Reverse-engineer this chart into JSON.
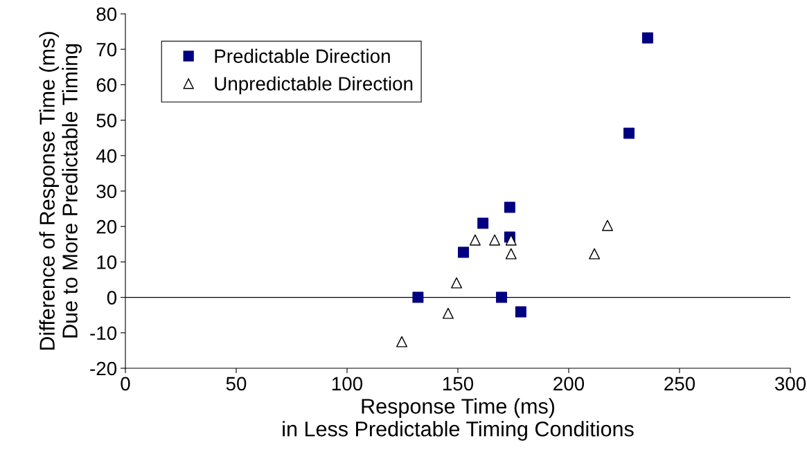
{
  "chart_data": {
    "type": "scatter",
    "xlabel": "Response Time (ms)\nin Less Predictable Timing Conditions",
    "ylabel": "Difference of Response Time (ms)\nDue to More Predictable Timing",
    "xlim": [
      0,
      300
    ],
    "xticks": [
      0,
      50,
      100,
      150,
      200,
      250,
      300
    ],
    "ylim": [
      -20,
      80
    ],
    "yticks": [
      -20,
      -10,
      0,
      10,
      20,
      30,
      40,
      50,
      60,
      70,
      80
    ],
    "grid": false,
    "legend": "top left",
    "ref_lines": [
      {
        "axis": "y",
        "value": 0,
        "color": "#000000",
        "line_style": "solid"
      }
    ],
    "series": [
      {
        "name": "Predictable Direction",
        "color": "#000080",
        "marker": "square",
        "x": [
          132,
          152.5,
          161.3,
          173.4,
          173.4,
          169.7,
          178.4,
          227.2,
          235.6
        ],
        "values": [
          0,
          12.7,
          20.9,
          25.4,
          17,
          0,
          -4.1,
          46.3,
          73.2
        ]
      },
      {
        "name": "Unpredictable Direction",
        "color": "#000000",
        "marker": "triangle",
        "x": [
          124.7,
          145.6,
          149.4,
          157.8,
          166.6,
          174,
          174,
          211.6,
          217.5
        ],
        "values": [
          -12.5,
          -4.5,
          4.1,
          16.2,
          16.2,
          16.2,
          12.3,
          12.3,
          20.3
        ]
      }
    ]
  }
}
